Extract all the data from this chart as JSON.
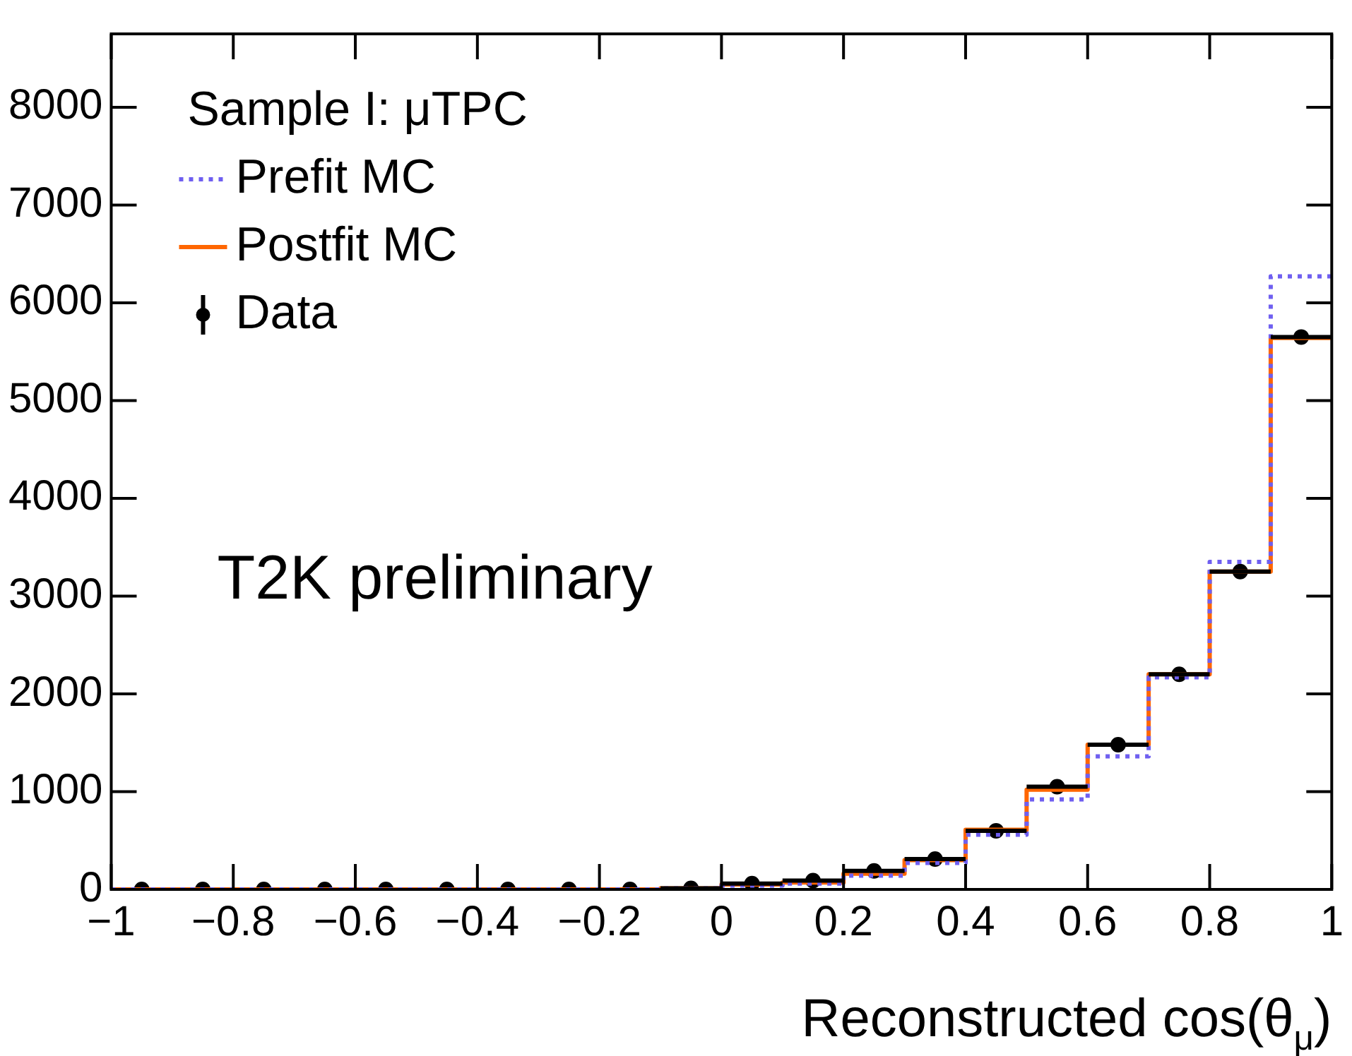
{
  "chart_data": {
    "type": "step",
    "xlabel": "Reconstructed cos(θ$_{μ}$)",
    "legend_title": "Sample I: μTPC",
    "legend": "top left",
    "grid": false,
    "annotations": [
      "T2K preliminary"
    ],
    "xlim": [
      -1,
      1
    ],
    "xticks": [
      {
        "value": -1,
        "label": "−1"
      },
      {
        "value": -0.8,
        "label": "−0.8"
      },
      {
        "value": -0.6,
        "label": "−0.6"
      },
      {
        "value": -0.4,
        "label": "−0.4"
      },
      {
        "value": -0.2,
        "label": "−0.2"
      },
      0,
      0.2,
      0.4,
      0.6,
      0.8,
      1
    ],
    "ylim": [
      0,
      8750
    ],
    "yticks": [
      0,
      1000,
      2000,
      3000,
      4000,
      5000,
      6000,
      7000,
      8000
    ],
    "series": [
      {
        "name": "Prefit MC",
        "color": "#6f5ff0",
        "line_style": "dotted",
        "x": [
          -1,
          -0.9,
          -0.8,
          -0.7,
          -0.6,
          -0.5,
          -0.4,
          -0.3,
          -0.2,
          -0.1,
          0,
          0.1,
          0.2,
          0.3,
          0.4,
          0.5,
          0.6,
          0.7,
          0.8,
          0.9,
          1
        ],
        "values": [
          0,
          0,
          0,
          0,
          0,
          0,
          0,
          0,
          0,
          10,
          40,
          60,
          140,
          270,
          560,
          920,
          1360,
          2170,
          3350,
          6270,
          6270
        ]
      },
      {
        "name": "Postfit MC",
        "color": "#ff6600",
        "line_style": "solid",
        "x": [
          -1,
          -0.9,
          -0.8,
          -0.7,
          -0.6,
          -0.5,
          -0.4,
          -0.3,
          -0.2,
          -0.1,
          0,
          0.1,
          0.2,
          0.3,
          0.4,
          0.5,
          0.6,
          0.7,
          0.8,
          0.9,
          1
        ],
        "values": [
          0,
          0,
          0,
          0,
          0,
          0,
          0,
          0,
          0,
          10,
          50,
          70,
          160,
          300,
          610,
          1020,
          1480,
          2200,
          3250,
          5640,
          5640
        ]
      },
      {
        "name": "Data",
        "type": "scatter",
        "color": "#000000",
        "marker": "circle",
        "x": [
          -0.95,
          -0.85,
          -0.75,
          -0.65,
          -0.55,
          -0.45,
          -0.35,
          -0.25,
          -0.15,
          -0.05,
          0.05,
          0.15,
          0.25,
          0.35,
          0.45,
          0.55,
          0.65,
          0.75,
          0.85,
          0.95
        ],
        "values": [
          0,
          0,
          0,
          0,
          0,
          0,
          0,
          0,
          0,
          10,
          60,
          90,
          190,
          310,
          600,
          1050,
          1480,
          2200,
          3250,
          5650
        ],
        "xerrors": [
          null,
          null,
          null,
          null,
          null,
          null,
          null,
          null,
          null,
          0.05,
          0.05,
          0.05,
          0.05,
          0.05,
          0.05,
          0.05,
          0.05,
          0.05,
          0.05,
          0.05
        ]
      }
    ]
  }
}
